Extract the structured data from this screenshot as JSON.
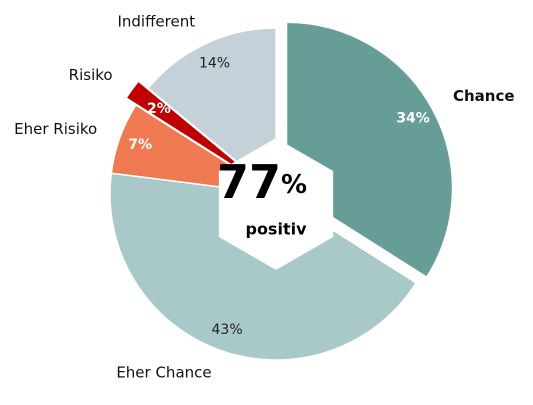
{
  "chart_data": {
    "type": "pie",
    "categories": [
      "Chance",
      "Eher Chance",
      "Eher Risiko",
      "Risiko",
      "Indifferent"
    ],
    "values": [
      34,
      43,
      7,
      2,
      14
    ],
    "value_labels": [
      "34%",
      "43%",
      "7%",
      "2%",
      "14%"
    ],
    "colors": [
      "#669d97",
      "#a8c9c8",
      "#ef7a52",
      "#c00000",
      "#c5d1d8"
    ],
    "explode": [
      true,
      false,
      false,
      true,
      false
    ],
    "bold_categories": [
      true,
      false,
      false,
      false,
      false
    ],
    "center_value": 77,
    "center_unit": "%",
    "center_label": "positiv"
  }
}
